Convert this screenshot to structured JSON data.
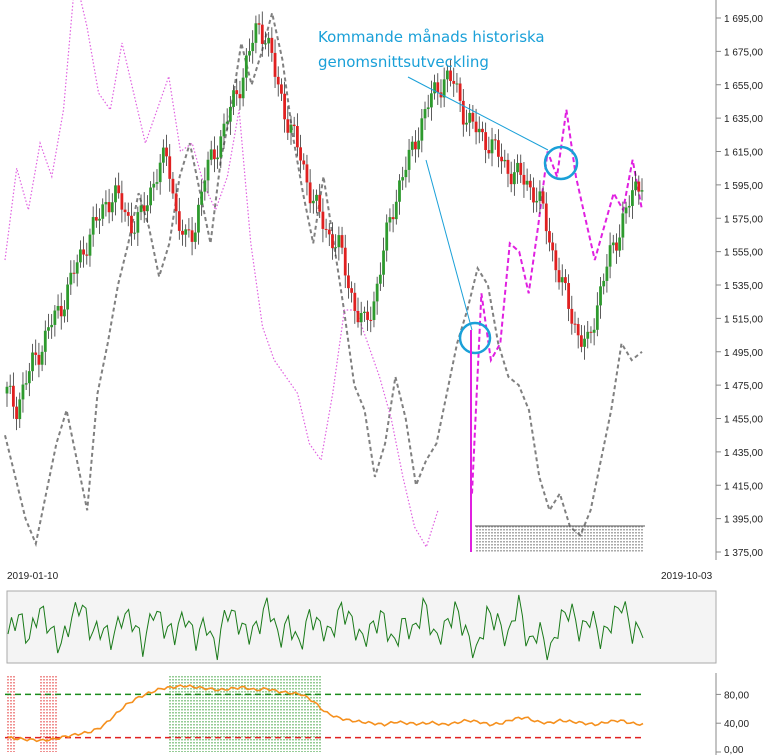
{
  "chart_data": [
    {
      "type": "candlestick",
      "y_axis_ticks": [
        "1 695,00",
        "1 675,00",
        "1 655,00",
        "1 635,00",
        "1 615,00",
        "1 595,00",
        "1 575,00",
        "1 555,00",
        "1 535,00",
        "1 515,00",
        "1 495,00",
        "1 475,00",
        "1 455,00",
        "1 435,00",
        "1 415,00",
        "1 395,00",
        "1 375,00"
      ],
      "ylim": [
        1375,
        1695
      ],
      "x_labels": [
        "2019-01-10",
        "2019-10-03"
      ],
      "annotation": [
        "Kommande månads historiska",
        "genomsnittsutveckling"
      ],
      "colors": {
        "up": "#2e9a2e",
        "down": "#e02020",
        "seasonal_projection": "#e020e0",
        "historical_dotted": "#e060e0",
        "comparison_dashed": "#808080",
        "annotation": "#1aa0d8"
      },
      "price_path": [
        1470,
        1462,
        1475,
        1490,
        1500,
        1512,
        1522,
        1535,
        1550,
        1562,
        1572,
        1585,
        1588,
        1582,
        1570,
        1575,
        1592,
        1605,
        1612,
        1575,
        1560,
        1570,
        1598,
        1612,
        1625,
        1640,
        1655,
        1672,
        1690,
        1685,
        1660,
        1640,
        1625,
        1608,
        1590,
        1575,
        1565,
        1560,
        1540,
        1520,
        1510,
        1525,
        1552,
        1578,
        1598,
        1610,
        1628,
        1642,
        1652,
        1660,
        1655,
        1640,
        1630,
        1625,
        1620,
        1612,
        1605,
        1600,
        1598,
        1590,
        1578,
        1555,
        1535,
        1520,
        1503,
        1498,
        1525,
        1545,
        1560,
        1578,
        1588,
        1600
      ],
      "gray_dashed_comparison": [
        1445,
        1420,
        1395,
        1380,
        1410,
        1440,
        1460,
        1430,
        1400,
        1470,
        1500,
        1535,
        1560,
        1590,
        1570,
        1540,
        1560,
        1600,
        1620,
        1590,
        1560,
        1610,
        1640,
        1680,
        1655,
        1675,
        1698,
        1670,
        1625,
        1590,
        1560,
        1600,
        1560,
        1520,
        1475,
        1460,
        1420,
        1440,
        1480,
        1455,
        1415,
        1430,
        1440,
        1470,
        1500,
        1520,
        1545,
        1535,
        1500,
        1480,
        1475,
        1460,
        1420,
        1400,
        1410,
        1390,
        1385,
        1400,
        1430,
        1460,
        1500,
        1490,
        1495
      ],
      "magenta_dotted_history": [
        1550,
        1605,
        1580,
        1620,
        1600,
        1640,
        1720,
        1690,
        1650,
        1640,
        1680,
        1650,
        1620,
        1640,
        1660,
        1615,
        1620,
        1595,
        1580,
        1600,
        1640,
        1560,
        1510,
        1490,
        1480,
        1470,
        1440,
        1430,
        1470,
        1520,
        1520,
        1500,
        1480,
        1455,
        1420,
        1390,
        1378,
        1400
      ],
      "seasonal_projection": [
        1410,
        1530,
        1490,
        1500,
        1560,
        1555,
        1530,
        1570,
        1615,
        1600,
        1640,
        1600,
        1575,
        1550,
        1570,
        1590,
        1580,
        1610,
        1580
      ],
      "oscillator": {
        "color": "#1a7a1a",
        "values": [
          0.4,
          0.7,
          0.3,
          0.8,
          0.5,
          0.2,
          0.6,
          0.9,
          0.4,
          0.5,
          0.3,
          0.7,
          0.6,
          0.2,
          0.8,
          0.5,
          0.4,
          0.7,
          0.3,
          0.6,
          0.1,
          0.8,
          0.6,
          0.4,
          0.5,
          0.9,
          0.3,
          0.6,
          0.2,
          0.7,
          0.5,
          0.4,
          0.8,
          0.6,
          0.3,
          0.5,
          0.7,
          0.2,
          0.6,
          0.4,
          0.9,
          0.3,
          0.5,
          0.8,
          0.4,
          0.1,
          0.7,
          0.6,
          0.3,
          0.95,
          0.2,
          0.5,
          0.05,
          0.6,
          0.8,
          0.4,
          0.7,
          0.3,
          0.6,
          0.9,
          0.4,
          0.5
        ]
      },
      "rsi_panel": {
        "y_ticks": [
          "80,00",
          "40,00",
          "0,00"
        ],
        "ylim": [
          0,
          100
        ],
        "overbought": 80,
        "oversold": 20,
        "line_color": "#f5901e",
        "values": [
          20,
          18,
          17,
          16,
          18,
          22,
          25,
          28,
          35,
          50,
          65,
          75,
          82,
          88,
          90,
          92,
          90,
          88,
          86,
          88,
          90,
          86,
          88,
          84,
          82,
          80,
          70,
          55,
          48,
          44,
          42,
          40,
          38,
          42,
          40,
          39,
          41,
          38,
          40,
          44,
          42,
          38,
          40,
          46,
          48,
          42,
          40,
          44,
          42,
          40,
          38,
          42,
          44,
          40,
          38
        ]
      }
    }
  ]
}
